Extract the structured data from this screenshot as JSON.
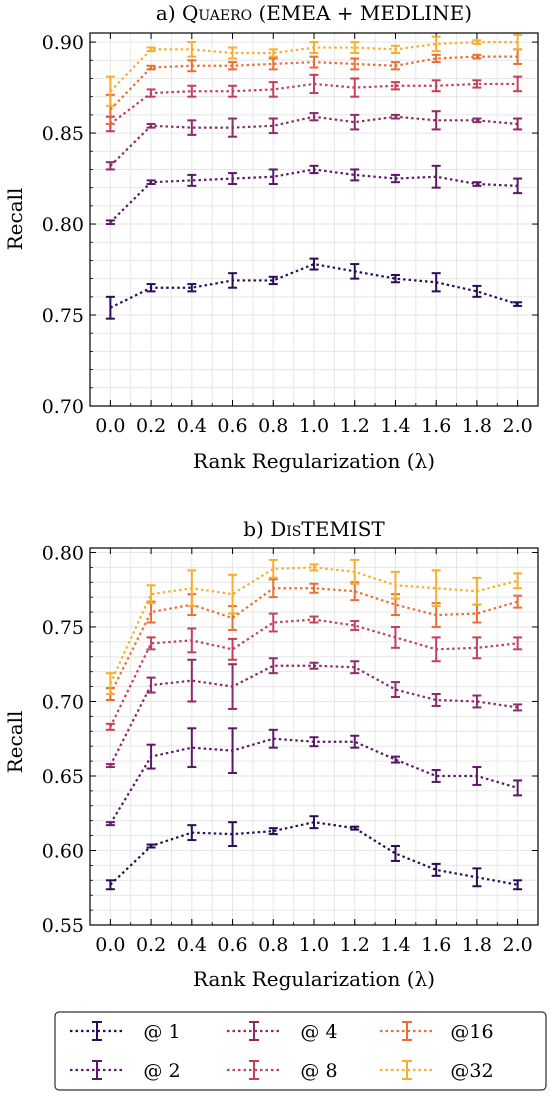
{
  "chart_data": [
    {
      "type": "line",
      "title_prefix": "a) ",
      "title_sc": "Quaero",
      "title_suffix": " (EMEA + MEDLINE)",
      "xlabel": "Rank Regularization (λ)",
      "ylabel": "Recall",
      "x": [
        0.0,
        0.2,
        0.4,
        0.6,
        0.8,
        1.0,
        1.2,
        1.4,
        1.6,
        1.8,
        2.0
      ],
      "x_tick_labels": [
        "0.0",
        "0.2",
        "0.4",
        "0.6",
        "0.8",
        "1.0",
        "1.2",
        "1.4",
        "1.6",
        "1.8",
        "2.0"
      ],
      "ylim": [
        0.7,
        0.905
      ],
      "y_ticks": [
        0.7,
        0.75,
        0.8,
        0.85,
        0.9
      ],
      "y_tick_labels": [
        "0.70",
        "0.75",
        "0.80",
        "0.85",
        "0.90"
      ],
      "grid": true,
      "series": [
        {
          "name": "@ 1",
          "color": "#2a0c56",
          "values": [
            0.754,
            0.765,
            0.765,
            0.769,
            0.769,
            0.778,
            0.774,
            0.77,
            0.768,
            0.763,
            0.756
          ],
          "errors": [
            0.006,
            0.002,
            0.002,
            0.004,
            0.002,
            0.003,
            0.004,
            0.002,
            0.005,
            0.003,
            0.001
          ]
        },
        {
          "name": "@ 2",
          "color": "#5c1768",
          "values": [
            0.801,
            0.823,
            0.824,
            0.825,
            0.826,
            0.83,
            0.827,
            0.825,
            0.826,
            0.822,
            0.821
          ],
          "errors": [
            0.001,
            0.001,
            0.003,
            0.003,
            0.004,
            0.002,
            0.003,
            0.002,
            0.006,
            0.001,
            0.004
          ]
        },
        {
          "name": "@ 4",
          "color": "#8c2a6a",
          "values": [
            0.832,
            0.854,
            0.853,
            0.853,
            0.854,
            0.859,
            0.856,
            0.859,
            0.857,
            0.857,
            0.855
          ],
          "errors": [
            0.002,
            0.001,
            0.004,
            0.005,
            0.004,
            0.002,
            0.004,
            0.001,
            0.005,
            0.001,
            0.003
          ]
        },
        {
          "name": "@ 8",
          "color": "#c4405a",
          "values": [
            0.855,
            0.872,
            0.873,
            0.873,
            0.874,
            0.877,
            0.875,
            0.876,
            0.876,
            0.877,
            0.877
          ],
          "errors": [
            0.004,
            0.002,
            0.003,
            0.003,
            0.004,
            0.005,
            0.005,
            0.002,
            0.003,
            0.002,
            0.004
          ]
        },
        {
          "name": "@16",
          "color": "#ea6e34",
          "values": [
            0.863,
            0.886,
            0.887,
            0.887,
            0.888,
            0.889,
            0.888,
            0.887,
            0.891,
            0.892,
            0.892
          ],
          "errors": [
            0.008,
            0.001,
            0.003,
            0.002,
            0.003,
            0.003,
            0.003,
            0.002,
            0.002,
            0.001,
            0.004
          ]
        },
        {
          "name": "@32",
          "color": "#f7ae2c",
          "values": [
            0.873,
            0.896,
            0.896,
            0.894,
            0.894,
            0.897,
            0.897,
            0.896,
            0.899,
            0.9,
            0.9
          ],
          "errors": [
            0.008,
            0.001,
            0.004,
            0.003,
            0.002,
            0.003,
            0.003,
            0.002,
            0.004,
            0.001,
            0.004
          ]
        }
      ]
    },
    {
      "type": "line",
      "title_prefix": "b) ",
      "title_sc": "DisTEMIST",
      "title_suffix": "",
      "xlabel": "Rank Regularization (λ)",
      "ylabel": "Recall",
      "x": [
        0.0,
        0.2,
        0.4,
        0.6,
        0.8,
        1.0,
        1.2,
        1.4,
        1.6,
        1.8,
        2.0
      ],
      "x_tick_labels": [
        "0.0",
        "0.2",
        "0.4",
        "0.6",
        "0.8",
        "1.0",
        "1.2",
        "1.4",
        "1.6",
        "1.8",
        "2.0"
      ],
      "ylim": [
        0.55,
        0.803
      ],
      "y_ticks": [
        0.55,
        0.6,
        0.65,
        0.7,
        0.75,
        0.8
      ],
      "y_tick_labels": [
        "0.55",
        "0.60",
        "0.65",
        "0.70",
        "0.75",
        "0.80"
      ],
      "grid": true,
      "series": [
        {
          "name": "@ 1",
          "color": "#2a0c56",
          "values": [
            0.577,
            0.603,
            0.612,
            0.611,
            0.613,
            0.619,
            0.615,
            0.598,
            0.587,
            0.582,
            0.577
          ],
          "errors": [
            0.003,
            0.001,
            0.005,
            0.008,
            0.002,
            0.004,
            0.001,
            0.005,
            0.004,
            0.006,
            0.003
          ]
        },
        {
          "name": "@ 2",
          "color": "#5c1768",
          "values": [
            0.618,
            0.663,
            0.669,
            0.667,
            0.675,
            0.673,
            0.673,
            0.661,
            0.65,
            0.65,
            0.642
          ],
          "errors": [
            0.001,
            0.008,
            0.013,
            0.015,
            0.006,
            0.003,
            0.004,
            0.002,
            0.004,
            0.006,
            0.005
          ]
        },
        {
          "name": "@ 4",
          "color": "#8c2a6a",
          "values": [
            0.657,
            0.711,
            0.714,
            0.71,
            0.724,
            0.724,
            0.723,
            0.708,
            0.701,
            0.7,
            0.696
          ],
          "errors": [
            0.001,
            0.005,
            0.014,
            0.015,
            0.005,
            0.002,
            0.004,
            0.005,
            0.004,
            0.004,
            0.002
          ]
        },
        {
          "name": "@ 8",
          "color": "#c4405a",
          "values": [
            0.683,
            0.739,
            0.741,
            0.735,
            0.753,
            0.755,
            0.751,
            0.743,
            0.735,
            0.736,
            0.739
          ],
          "errors": [
            0.002,
            0.004,
            0.008,
            0.007,
            0.006,
            0.002,
            0.003,
            0.007,
            0.008,
            0.007,
            0.004
          ]
        },
        {
          "name": "@16",
          "color": "#ea6e34",
          "values": [
            0.705,
            0.76,
            0.765,
            0.756,
            0.776,
            0.776,
            0.774,
            0.765,
            0.758,
            0.759,
            0.767
          ],
          "errors": [
            0.004,
            0.007,
            0.007,
            0.008,
            0.006,
            0.003,
            0.006,
            0.007,
            0.008,
            0.006,
            0.004
          ]
        },
        {
          "name": "@32",
          "color": "#f7ae2c",
          "values": [
            0.712,
            0.772,
            0.776,
            0.772,
            0.789,
            0.79,
            0.787,
            0.778,
            0.776,
            0.774,
            0.781
          ],
          "errors": [
            0.007,
            0.006,
            0.012,
            0.013,
            0.006,
            0.002,
            0.008,
            0.009,
            0.012,
            0.009,
            0.005
          ]
        }
      ]
    }
  ],
  "legend": {
    "placement": "bottom",
    "columns": 3,
    "entries": [
      "@ 1",
      "@ 2",
      "@ 4",
      "@ 8",
      "@16",
      "@32"
    ]
  }
}
